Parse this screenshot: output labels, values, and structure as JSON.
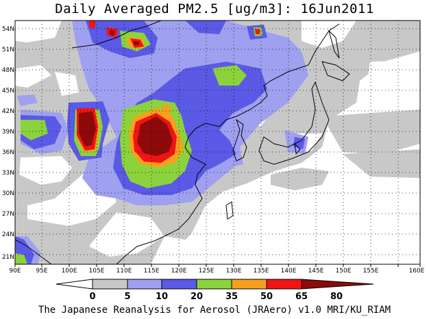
{
  "title": "Daily Averaged PM2.5 [ug/m3]: 16Jun2011",
  "footer": "The Japanese Reanalysis for Aerosol (JRAero) v1.0 MRI/KU_RIAM",
  "map": {
    "lon_labels": [
      "90E",
      "95E",
      "100E",
      "105E",
      "110E",
      "115E",
      "120E",
      "125E",
      "130E",
      "135E",
      "140E",
      "145E",
      "150E",
      "155E",
      "160E"
    ],
    "lat_labels": [
      "54N",
      "51N",
      "48N",
      "45N",
      "42N",
      "39N",
      "36N",
      "33N",
      "30N",
      "27N",
      "24N",
      "21N"
    ]
  },
  "colorbar": {
    "labels": [
      "0",
      "5",
      "10",
      "20",
      "35",
      "50",
      "65",
      "80"
    ],
    "colors": {
      "c0_5": "#ffffff",
      "c5_10": "#c8c8c8",
      "c10_20": "#a0a0f0",
      "c20_35": "#5a5ae6",
      "c35_50": "#8cd23c",
      "c50_65": "#f5a01e",
      "c65_80": "#f01414",
      "c80": "#8c0a0a"
    }
  }
}
